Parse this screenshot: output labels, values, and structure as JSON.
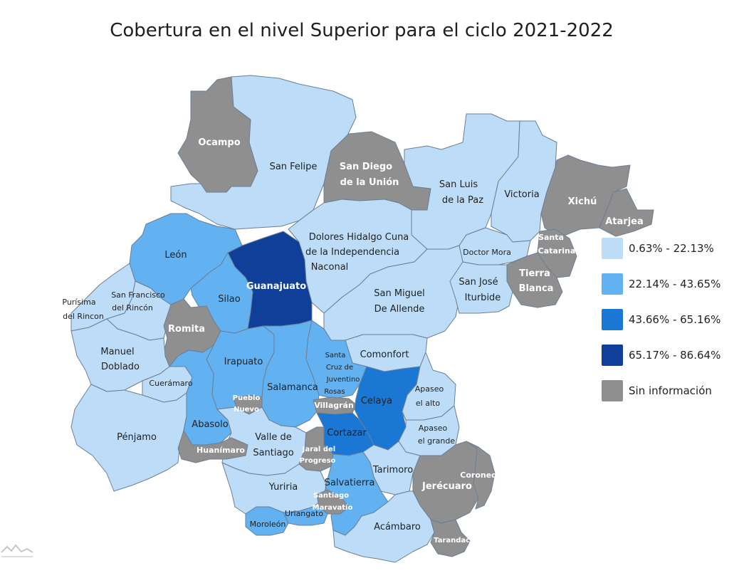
{
  "title": "Cobertura en el nivel Superior para el ciclo 2021-2022",
  "colors": {
    "c1": "#bcdcf8",
    "c2": "#62b1f1",
    "c3": "#1b77d4",
    "c4": "#0f3f99",
    "none": "#8f8f8f"
  },
  "legend": [
    {
      "label": "0.63% - 22.13%",
      "color": "#bcdcf8"
    },
    {
      "label": "22.14% - 43.65%",
      "color": "#62b1f1"
    },
    {
      "label": "43.66% - 65.16%",
      "color": "#1b77d4"
    },
    {
      "label": "65.17% - 86.64%",
      "color": "#0f3f99"
    },
    {
      "label": "Sin información",
      "color": "#8f8f8f"
    }
  ],
  "municipios": {
    "ocampo": {
      "name": "Ocampo",
      "class": "Sin información"
    },
    "san_felipe": {
      "name": "San Felipe",
      "class": "0.63% - 22.13%"
    },
    "san_diego": {
      "name_1": "San Diego",
      "name_2": "de la Unión",
      "class": "Sin información"
    },
    "san_luis": {
      "name_1": "San Luis",
      "name_2": "de la Paz",
      "class": "0.63% - 22.13%"
    },
    "victoria": {
      "name": "Victoria",
      "class": "0.63% - 22.13%"
    },
    "xichu": {
      "name": "Xichú",
      "class": "Sin información"
    },
    "atarjea": {
      "name": "Atarjea",
      "class": "Sin información"
    },
    "santa_catarina": {
      "name_1": "Santa",
      "name_2": "Catarina",
      "class": "Sin información"
    },
    "leon": {
      "name": "León",
      "class": "22.14% - 43.65%"
    },
    "dolores": {
      "name_1": "Dolores Hidalgo Cuna",
      "name_2": "de la Independencia",
      "name_3": "Naconal",
      "class": "0.63% - 22.13%"
    },
    "doctor_mora": {
      "name": "Doctor Mora",
      "class": "0.63% - 22.13%"
    },
    "tierra_blanca": {
      "name_1": "Tierra",
      "name_2": "Blanca",
      "class": "Sin información"
    },
    "guanajuato": {
      "name": "Guanajuato",
      "class": "65.17% - 86.64%"
    },
    "silao": {
      "name": "Silao",
      "class": "22.14% - 43.65%"
    },
    "san_miguel": {
      "name_1": "San Miguel",
      "name_2": "De Allende",
      "class": "0.63% - 22.13%"
    },
    "san_jose": {
      "name_1": "San José",
      "name_2": "Iturbide",
      "class": "0.63% - 22.13%"
    },
    "purisima": {
      "name_1": "Purísima",
      "name_2": "del Rincon",
      "class": "0.63% - 22.13%"
    },
    "sf_rincon": {
      "name_1": "San Francisco",
      "name_2": "del Rincón",
      "class": "0.63% - 22.13%"
    },
    "romita": {
      "name": "Romita",
      "class": "Sin información"
    },
    "manuel_doblado": {
      "name_1": "Manuel",
      "name_2": "Doblado",
      "class": "0.63% - 22.13%"
    },
    "cueramaro": {
      "name": "Cuerámaro",
      "class": "0.63% - 22.13%"
    },
    "irapuato": {
      "name": "Irapuato",
      "class": "22.14% - 43.65%"
    },
    "santa_cruz": {
      "name_1": "Santa",
      "name_2": "Cruz de",
      "name_3": "Juventino",
      "name_4": "Rosas",
      "class": "22.14% - 43.65%"
    },
    "comonfort": {
      "name": "Comonfort",
      "class": "0.63% - 22.13%"
    },
    "salamanca": {
      "name": "Salamanca",
      "class": "22.14% - 43.65%"
    },
    "pueblo_nuevo": {
      "name_1": "Pueblo",
      "name_2": "Nuevo",
      "class": "Sin información"
    },
    "villagran": {
      "name": "Villagrán",
      "class": "Sin información"
    },
    "celaya": {
      "name": "Celaya",
      "class": "43.66% - 65.16%"
    },
    "apaseo_alto": {
      "name_1": "Apaseo",
      "name_2": "el alto",
      "class": "0.63% - 22.13%"
    },
    "penjamo": {
      "name": "Pénjamo",
      "class": "0.63% - 22.13%"
    },
    "abasolo": {
      "name": "Abasolo",
      "class": "22.14% - 43.65%"
    },
    "valle": {
      "name_1": "Valle de",
      "name_2": "Santiago",
      "class": "0.63% - 22.13%"
    },
    "cortazar": {
      "name": "Cortazar",
      "class": "43.66% - 65.16%"
    },
    "apaseo_grande": {
      "name_1": "Apaseo",
      "name_2": "el grande",
      "class": "0.63% - 22.13%"
    },
    "huanimaro": {
      "name": "Huanímaro",
      "class": "Sin información"
    },
    "jaral": {
      "name_1": "Jaral del",
      "name_2": "Progreso",
      "class": "Sin información"
    },
    "tarimoro": {
      "name": "Tarimoro",
      "class": "0.63% - 22.13%"
    },
    "coroneo": {
      "name": "Coroneo",
      "class": "Sin información"
    },
    "jerecuaro": {
      "name": "Jerécuaro",
      "class": "Sin información"
    },
    "yuriria": {
      "name": "Yuriria",
      "class": "0.63% - 22.13%"
    },
    "salvatierra": {
      "name": "Salvatierra",
      "class": "22.14% - 43.65%"
    },
    "santiago_maravatio": {
      "name_1": "Santiago",
      "name_2": "Maravatío",
      "class": "Sin información"
    },
    "uriangato": {
      "name": "Uriangato",
      "class": "22.14% - 43.65%"
    },
    "moroleon": {
      "name": "Moroleón",
      "class": "22.14% - 43.65%"
    },
    "acambaro": {
      "name": "Acámbaro",
      "class": "0.63% - 22.13%"
    },
    "tarandacuao": {
      "name": "Tarandacuao",
      "class": "Sin información"
    }
  }
}
